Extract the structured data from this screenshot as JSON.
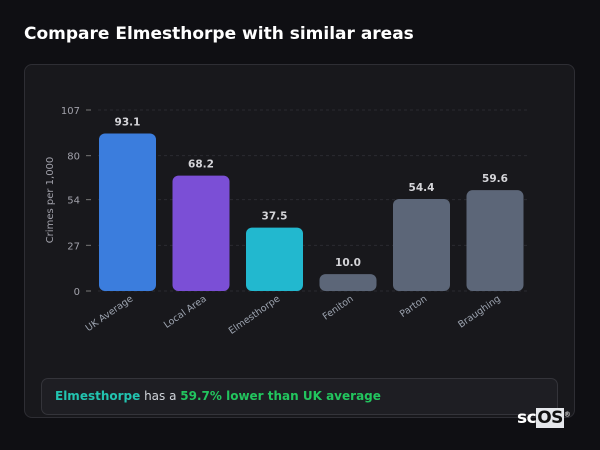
{
  "title": "Compare Elmesthorpe with similar areas",
  "chart_data": {
    "type": "bar",
    "title": "",
    "xlabel": "",
    "ylabel": "Crimes per 1,000",
    "ylim": [
      0,
      107
    ],
    "yticks": [
      0,
      27,
      54,
      80,
      107
    ],
    "grid": true,
    "categories": [
      "UK Average",
      "Local Area",
      "Elmesthorpe",
      "Feniton",
      "Parton",
      "Braughing"
    ],
    "values": [
      93.1,
      68.2,
      37.5,
      10.0,
      54.4,
      59.6
    ],
    "value_labels": [
      "93.1",
      "68.2",
      "37.5",
      "10.0",
      "54.4",
      "59.6"
    ],
    "colors": [
      "#3b7ddd",
      "#7b4fd6",
      "#22b8cf",
      "#5c6678",
      "#5c6678",
      "#5c6678"
    ]
  },
  "summary": {
    "area": "Elmesthorpe",
    "middle": " has a ",
    "comparison": "59.7% lower than UK average"
  },
  "logo": {
    "text_a": "sc",
    "text_b": "OS",
    "mark": "®"
  }
}
